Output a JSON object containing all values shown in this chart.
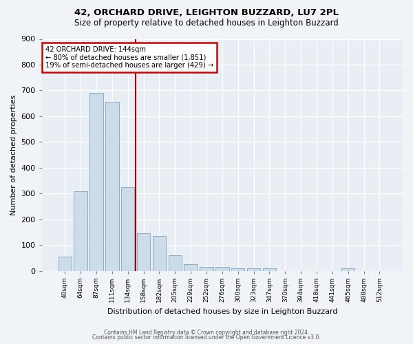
{
  "title1": "42, ORCHARD DRIVE, LEIGHTON BUZZARD, LU7 2PL",
  "title2": "Size of property relative to detached houses in Leighton Buzzard",
  "xlabel": "Distribution of detached houses by size in Leighton Buzzard",
  "ylabel": "Number of detached properties",
  "categories": [
    "40sqm",
    "64sqm",
    "87sqm",
    "111sqm",
    "134sqm",
    "158sqm",
    "182sqm",
    "205sqm",
    "229sqm",
    "252sqm",
    "276sqm",
    "300sqm",
    "323sqm",
    "347sqm",
    "370sqm",
    "394sqm",
    "418sqm",
    "441sqm",
    "465sqm",
    "488sqm",
    "512sqm"
  ],
  "values": [
    55,
    310,
    690,
    655,
    325,
    145,
    135,
    60,
    25,
    15,
    15,
    10,
    10,
    10,
    0,
    0,
    0,
    0,
    10,
    0,
    0
  ],
  "bar_color": "#ccdce8",
  "bar_edge_color": "#89aec8",
  "vline_x": 4.5,
  "vline_color": "#aa0000",
  "ylim": [
    0,
    900
  ],
  "yticks": [
    0,
    100,
    200,
    300,
    400,
    500,
    600,
    700,
    800,
    900
  ],
  "annotation_text": "42 ORCHARD DRIVE: 144sqm\n← 80% of detached houses are smaller (1,851)\n19% of semi-detached houses are larger (429) →",
  "annotation_box_color": "#ffffff",
  "annotation_box_edge": "#cc0000",
  "footer1": "Contains HM Land Registry data © Crown copyright and database right 2024.",
  "footer2": "Contains public sector information licensed under the Open Government Licence v3.0.",
  "fig_bg_color": "#f0f4f8",
  "plot_bg_color": "#e8eef4"
}
